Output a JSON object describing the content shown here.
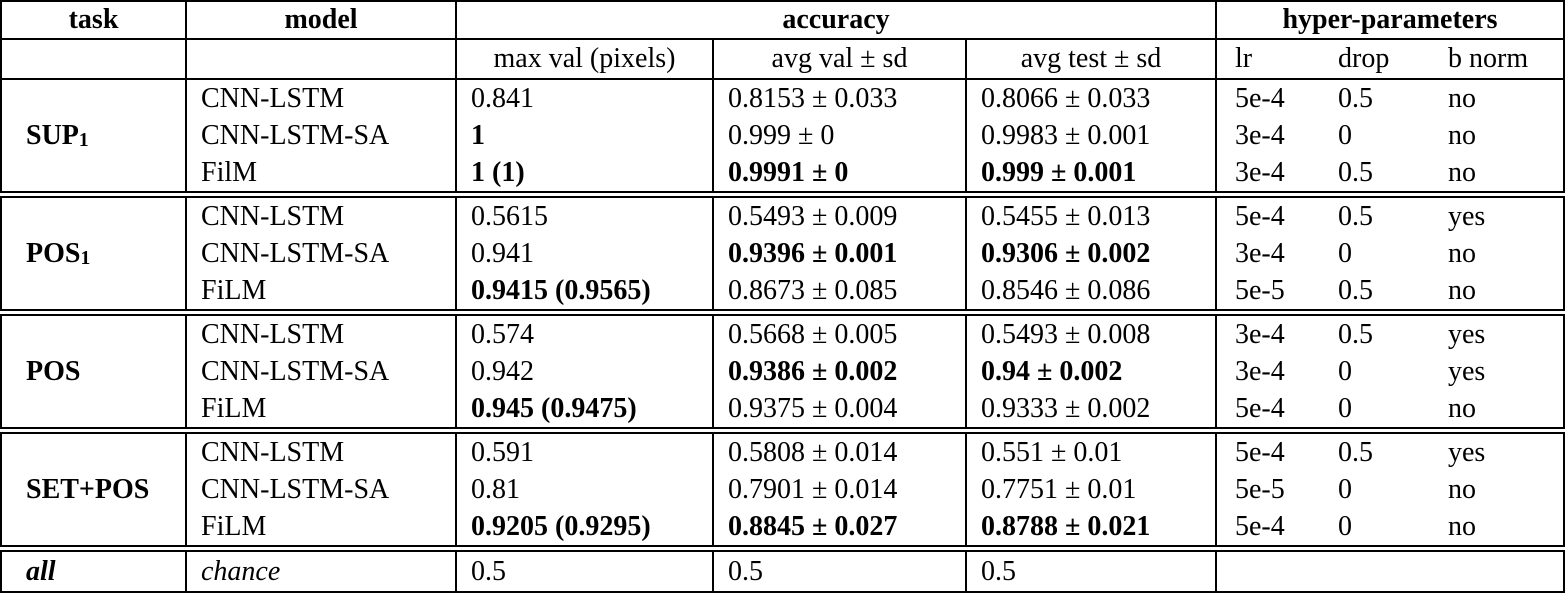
{
  "header": {
    "task": "task",
    "model": "model",
    "accuracy": "accuracy",
    "hyper_parameters": "hyper-parameters",
    "sub": {
      "max_val": "max val (pixels)",
      "avg_val": "avg val ± sd",
      "avg_test": "avg test ± sd",
      "lr": "lr",
      "drop": "drop",
      "b_norm": "b norm"
    }
  },
  "colors": {
    "text": "#000000",
    "border": "#000000",
    "background": "#ffffff"
  },
  "sections": [
    {
      "task": "SUP",
      "task_sub": "1",
      "rows": [
        {
          "model": "CNN-LSTM",
          "max_val": "0.841",
          "avg_val": "0.8153 ± 0.033",
          "avg_test": "0.8066 ± 0.033",
          "lr": "5e-4",
          "drop": "0.5",
          "b_norm": "no",
          "bold": []
        },
        {
          "model": "CNN-LSTM-SA",
          "max_val": "1",
          "avg_val": "0.999 ± 0",
          "avg_test": "0.9983 ± 0.001",
          "lr": "3e-4",
          "drop": "0",
          "b_norm": "no",
          "bold": [
            "max_val"
          ]
        },
        {
          "model": "FilM",
          "max_val": "1 (1)",
          "avg_val": "0.9991 ± 0",
          "avg_test": "0.999 ± 0.001",
          "lr": "3e-4",
          "drop": "0.5",
          "b_norm": "no",
          "bold": [
            "max_val",
            "avg_val",
            "avg_test"
          ]
        }
      ]
    },
    {
      "task": "POS",
      "task_sub": "1",
      "rows": [
        {
          "model": "CNN-LSTM",
          "max_val": "0.5615",
          "avg_val": "0.5493 ± 0.009",
          "avg_test": "0.5455 ± 0.013",
          "lr": "5e-4",
          "drop": "0.5",
          "b_norm": "yes",
          "bold": []
        },
        {
          "model": "CNN-LSTM-SA",
          "max_val": "0.941",
          "avg_val": "0.9396 ± 0.001",
          "avg_test": "0.9306 ± 0.002",
          "lr": "3e-4",
          "drop": "0",
          "b_norm": "no",
          "bold": [
            "avg_val",
            "avg_test"
          ]
        },
        {
          "model": "FiLM",
          "max_val": "0.9415 (0.9565)",
          "avg_val": "0.8673 ± 0.085",
          "avg_test": "0.8546 ± 0.086",
          "lr": "5e-5",
          "drop": "0.5",
          "b_norm": "no",
          "bold": [
            "max_val"
          ]
        }
      ]
    },
    {
      "task": "POS",
      "task_sub": "",
      "rows": [
        {
          "model": "CNN-LSTM",
          "max_val": "0.574",
          "avg_val": "0.5668 ± 0.005",
          "avg_test": "0.5493 ± 0.008",
          "lr": "3e-4",
          "drop": "0.5",
          "b_norm": "yes",
          "bold": []
        },
        {
          "model": "CNN-LSTM-SA",
          "max_val": "0.942",
          "avg_val": "0.9386 ± 0.002",
          "avg_test": "0.94 ± 0.002",
          "lr": "3e-4",
          "drop": "0",
          "b_norm": "yes",
          "bold": [
            "avg_val",
            "avg_test"
          ]
        },
        {
          "model": "FiLM",
          "max_val": "0.945 (0.9475)",
          "avg_val": "0.9375 ± 0.004",
          "avg_test": "0.9333 ± 0.002",
          "lr": "5e-4",
          "drop": "0",
          "b_norm": "no",
          "bold": [
            "max_val"
          ]
        }
      ]
    },
    {
      "task": "SET+POS",
      "task_sub": "",
      "rows": [
        {
          "model": "CNN-LSTM",
          "max_val": "0.591",
          "avg_val": "0.5808 ± 0.014",
          "avg_test": "0.551 ± 0.01",
          "lr": "5e-4",
          "drop": "0.5",
          "b_norm": "yes",
          "bold": []
        },
        {
          "model": "CNN-LSTM-SA",
          "max_val": "0.81",
          "avg_val": "0.7901 ± 0.014",
          "avg_test": "0.7751 ± 0.01",
          "lr": "5e-5",
          "drop": "0",
          "b_norm": "no",
          "bold": []
        },
        {
          "model": "FiLM",
          "max_val": "0.9205 (0.9295)",
          "avg_val": "0.8845 ± 0.027",
          "avg_test": "0.8788 ± 0.021",
          "lr": "5e-4",
          "drop": "0",
          "b_norm": "no",
          "bold": [
            "max_val",
            "avg_val",
            "avg_test"
          ]
        }
      ]
    }
  ],
  "footer": {
    "task": "all",
    "model": "chance",
    "max_val": "0.5",
    "avg_val": "0.5",
    "avg_test": "0.5",
    "hyper": ""
  }
}
